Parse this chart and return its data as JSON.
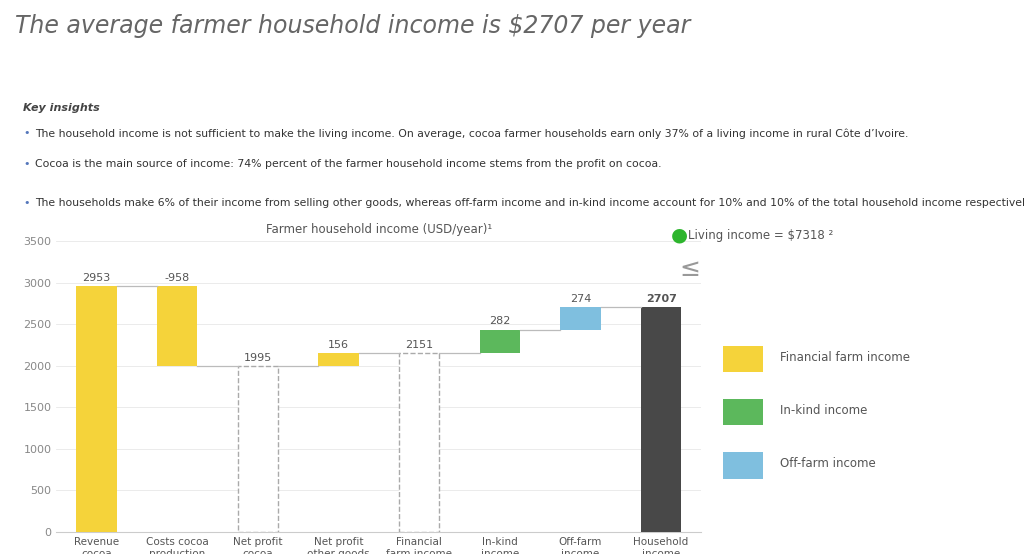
{
  "title": "The average farmer household income is $2707 per year",
  "chart_title": "Farmer household income (USD/year)¹",
  "background_color": "#ffffff",
  "key_insights_bg": "#efefef",
  "key_insights_title": "Key insights",
  "key_insights": [
    "The household income is not sufficient to make the living income. On average, cocoa farmer households earn only 37% of a living income in rural Côte d’Ivoire.",
    "Cocoa is the main source of income: 74% percent of the farmer household income stems from the profit on cocoa.",
    "The households make 6% of their income from selling other goods, whereas off-farm income and in-kind income account for 10% and 10% of the total household income respectively."
  ],
  "categories": [
    "Revenue\ncocoa",
    "Costs cocoa\nproduction",
    "Net profit\ncocoa",
    "Net profit\nother goods",
    "Financial\nfarm income",
    "In-kind\nincome",
    "Off-farm\nincome",
    "Household\nincome"
  ],
  "bar_bottoms": [
    0,
    1995,
    0,
    1995,
    0,
    2151,
    2433,
    0
  ],
  "bar_heights": [
    2953,
    958,
    1995,
    156,
    2151,
    282,
    274,
    2707
  ],
  "bar_values": [
    2953,
    -958,
    1995,
    156,
    2151,
    282,
    274,
    2707
  ],
  "bar_colors": [
    "#f5d33a",
    "#f5d33a",
    "white",
    "#f5d33a",
    "white",
    "#5cb85c",
    "#7fbfdf",
    "#484848"
  ],
  "bar_dashed": [
    false,
    false,
    true,
    false,
    true,
    false,
    false,
    false
  ],
  "ylim": [
    0,
    3500
  ],
  "yticks": [
    0,
    500,
    1000,
    1500,
    2000,
    2500,
    3000,
    3500
  ],
  "connector_lines": [
    [
      0,
      1,
      2953
    ],
    [
      1,
      2,
      1995
    ],
    [
      2,
      3,
      1995
    ],
    [
      3,
      4,
      2151
    ],
    [
      4,
      5,
      2151
    ],
    [
      5,
      6,
      2433
    ],
    [
      6,
      7,
      2707
    ]
  ],
  "legend_items": [
    {
      "label": "Financial farm income",
      "color": "#f5d33a"
    },
    {
      "label": "In-kind income",
      "color": "#5cb85c"
    },
    {
      "label": "Off-farm income",
      "color": "#7fbfdf"
    }
  ],
  "living_income_label": "Living income = $7318 ²",
  "living_income_color": "#2db52d",
  "less_than_symbol": "≤"
}
